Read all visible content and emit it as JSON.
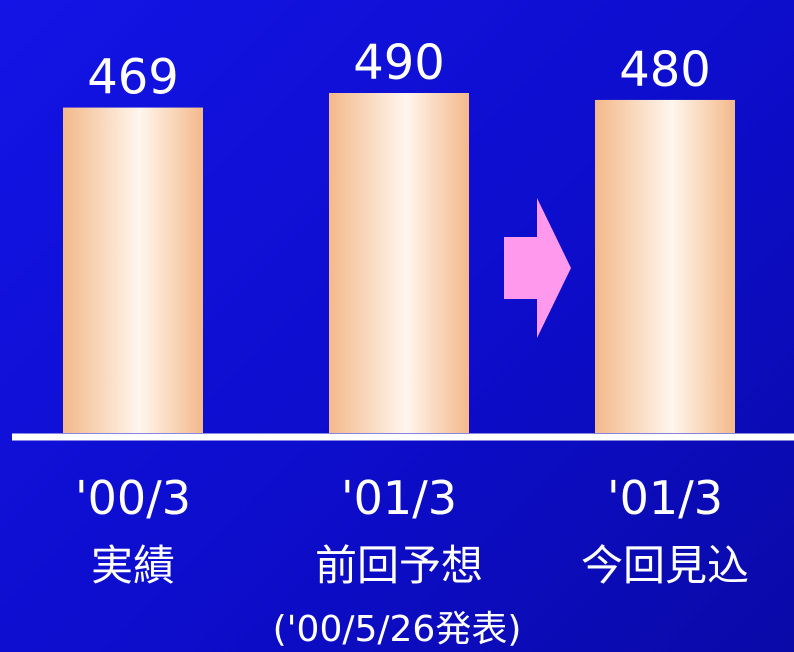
{
  "colors": {
    "background": "#1111dd",
    "bar_edge": "#f3b98a",
    "bar_center": "#fff6ee",
    "arrow": "#ff99ee",
    "axis": "#ffffff",
    "text": "#ffffff"
  },
  "icons": {
    "arrow": "right-arrow-icon"
  },
  "chart_data": {
    "type": "bar",
    "categories": [
      "'00/3 実績",
      "'01/3 前回予想",
      "'01/3 今回見込"
    ],
    "category_periods": [
      "'00/3",
      "'01/3",
      "'01/3"
    ],
    "category_names": [
      "実績",
      "前回予想",
      "今回見込"
    ],
    "values": [
      469,
      490,
      480
    ],
    "data_labels": [
      "469",
      "490",
      "480"
    ],
    "annotation": "('00/5/26発表)",
    "ylim": [
      0,
      490
    ],
    "grid": false,
    "legend": "none"
  }
}
